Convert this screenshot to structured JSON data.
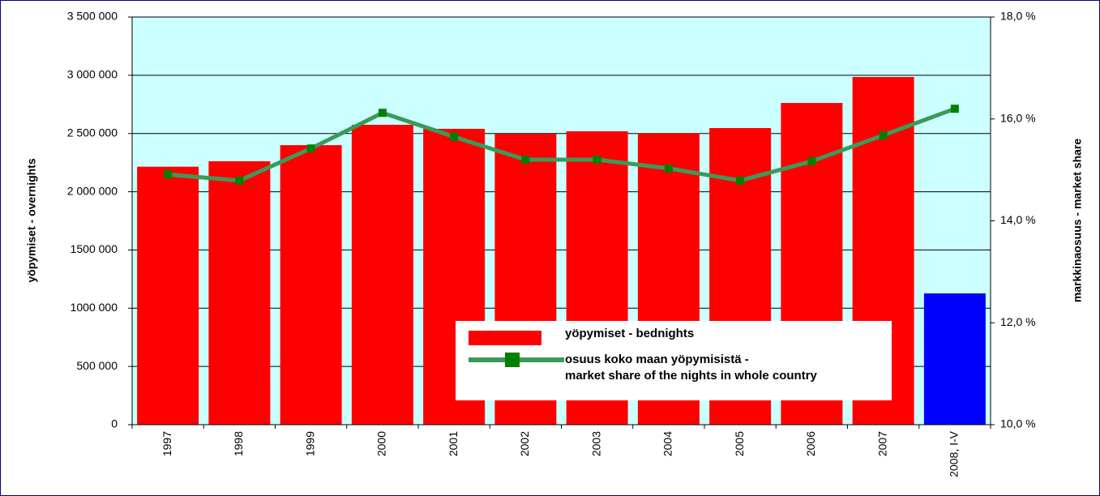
{
  "chart_data": {
    "type": "bar_line",
    "y_label": "yöpymiset - overnights",
    "y2_label": "markkinaosuus - market share",
    "categories": [
      "1997",
      "1998",
      "1999",
      "2000",
      "2001",
      "2002",
      "2003",
      "2004",
      "2005",
      "2006",
      "2007",
      "2008, I-V"
    ],
    "series": [
      {
        "name": "yöpymiset - bednights",
        "type": "bar",
        "color": "#ff0000",
        "colors": [
          "#ff0000",
          "#ff0000",
          "#ff0000",
          "#ff0000",
          "#ff0000",
          "#ff0000",
          "#ff0000",
          "#ff0000",
          "#ff0000",
          "#ff0000",
          "#ff0000",
          "#0000ff"
        ],
        "values": [
          2215000,
          2262000,
          2400000,
          2575000,
          2540000,
          2498000,
          2519000,
          2500000,
          2547000,
          2762000,
          2985000,
          1127000
        ]
      },
      {
        "name": "osuus koko maan yöpymisistä -\nmarket share of the nights in whole country",
        "type": "line",
        "axis": "y2",
        "color": "#3a9a5a",
        "marker_color": "#008000",
        "values": [
          14.91,
          14.79,
          15.42,
          16.12,
          15.65,
          15.2,
          15.2,
          15.03,
          14.79,
          15.17,
          15.68,
          16.2
        ]
      }
    ],
    "ylim": [
      0,
      3500000
    ],
    "yticks": [
      0,
      {
        "value": 500000,
        "label": "500 000"
      },
      {
        "value": 1000000,
        "label": "1000 000"
      },
      {
        "value": 1500000,
        "label": "1500 000"
      },
      {
        "value": 2000000,
        "label": "2 000 000"
      },
      {
        "value": 2500000,
        "label": "2 500 000"
      },
      {
        "value": 3000000,
        "label": "3 000 000"
      },
      {
        "value": 3500000,
        "label": "3 500 000"
      }
    ],
    "y2lim": [
      10,
      18
    ],
    "y2ticks": [
      {
        "value": 10,
        "label": "10,0 %"
      },
      {
        "value": 12,
        "label": "12,0 %"
      },
      {
        "value": 14,
        "label": "14,0 %"
      },
      {
        "value": 16,
        "label": "16,0 %"
      },
      {
        "value": 18,
        "label": "18,0 %"
      }
    ],
    "grid": true,
    "plot_background": "#ccffff"
  }
}
